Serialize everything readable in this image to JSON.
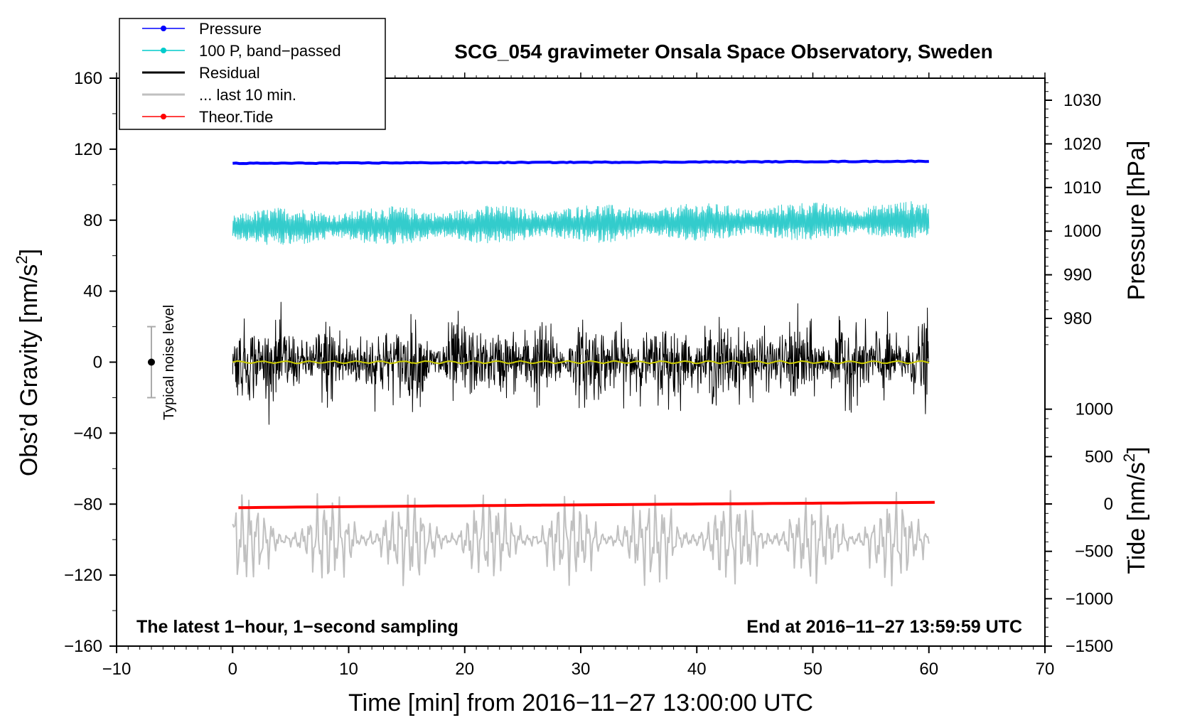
{
  "chart_data": {
    "type": "line",
    "title": "SCG_054 gravimeter Onsala Space Observatory, Sweden",
    "xlabel": "Time [min] from 2016−11−27 13:00:00 UTC",
    "ylabel_left": "Obs’d Gravity [nm/s",
    "ylabel_left_exp": "2",
    "ylabel_left_close": "]",
    "ylabel_pressure": "Pressure [hPa]",
    "ylabel_tide": "Tide [nm/s",
    "ylabel_tide_exp": "2",
    "ylabel_tide_close": "]",
    "xlim": [
      -10,
      70
    ],
    "ylim": [
      -160,
      160
    ],
    "x_ticks": [
      "−10",
      "0",
      "10",
      "20",
      "30",
      "40",
      "50",
      "60",
      "70"
    ],
    "x_tick_values": [
      -10,
      0,
      10,
      20,
      30,
      40,
      50,
      60,
      70
    ],
    "y_ticks": [
      "160",
      "120",
      "80",
      "40",
      "0",
      "−40",
      "−80",
      "−120",
      "−160"
    ],
    "y_tick_values": [
      160,
      120,
      80,
      40,
      0,
      -40,
      -80,
      -120,
      -160
    ],
    "pressure_ticks": [
      "1030",
      "1020",
      "1010",
      "1000",
      "990",
      "980"
    ],
    "pressure_tick_values": [
      1030,
      1020,
      1010,
      1000,
      990,
      980
    ],
    "tide_ticks": [
      "1000",
      "500",
      "0",
      "−500",
      "−1000",
      "−1500"
    ],
    "tide_tick_values": [
      1000,
      500,
      0,
      -500,
      -1000,
      -1500
    ],
    "legend": [
      {
        "label": "Pressure",
        "color": "#0000ff",
        "marker": true
      },
      {
        "label": "100 P, band−passed",
        "color": "#00cccc",
        "marker": true
      },
      {
        "label": "Residual",
        "color": "#000000",
        "marker": false
      },
      {
        "label": "... last 10 min.",
        "color": "#c0c0c0",
        "marker": false
      },
      {
        "label": "Theor.Tide",
        "color": "#ff0000",
        "marker": true
      }
    ],
    "series": [
      {
        "name": "Pressure",
        "color": "#0000ff",
        "offset": 112,
        "x_range": [
          0,
          60
        ],
        "level_start": 112,
        "level_end": 113.2,
        "noise_amplitude": 0.4
      },
      {
        "name": "100 P, band−passed",
        "color": "#33cccc",
        "offset": 80,
        "x_range": [
          0,
          60
        ],
        "noise_amplitude": 9
      },
      {
        "name": "Residual",
        "color": "#000000",
        "offset": 0,
        "x_range": [
          0,
          60
        ],
        "noise_amplitude": 18
      },
      {
        "name": "Residual smoothed",
        "color": "#cccc00",
        "offset": 0,
        "x_range": [
          0,
          60
        ],
        "noise_amplitude": 0.8
      },
      {
        "name": "... last 10 min.",
        "color": "#c0c0c0",
        "offset": -100,
        "x_range": [
          0,
          60
        ],
        "noise_amplitude": 20
      },
      {
        "name": "Theor.Tide",
        "color": "#ff0000",
        "offset": -82,
        "x_range": [
          0.5,
          60.5
        ],
        "level_start": -82,
        "level_end": -79
      }
    ],
    "noise_level": {
      "label": "Typical noise level",
      "x": -7,
      "center": 0,
      "half_range": 20
    },
    "annotations": {
      "left": "The latest 1−hour, 1−second sampling",
      "right": "End at 2016−11−27 13:59:59 UTC"
    }
  }
}
